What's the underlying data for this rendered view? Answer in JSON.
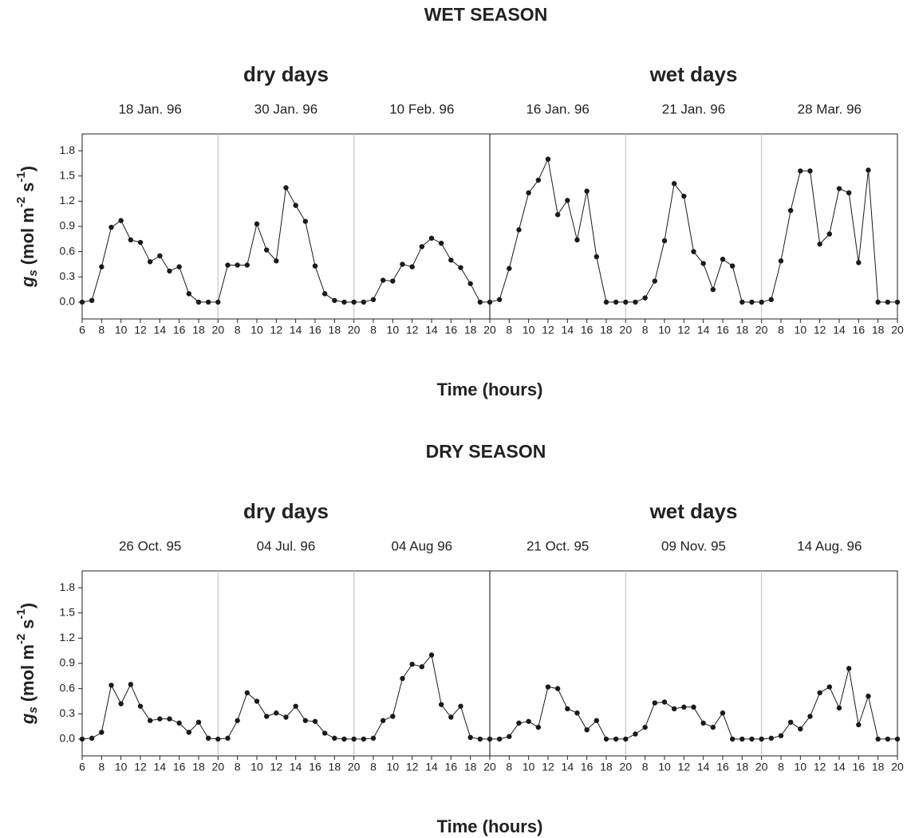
{
  "chart_data": [
    {
      "type": "line",
      "title": "WET SEASON",
      "groups": [
        "dry days",
        "wet days"
      ],
      "xlabel": "Time (hours)",
      "ylabel": {
        "symbol": "g",
        "sub": "s",
        "unit": "(mol m",
        "exp1": "-2",
        "unit2": "s",
        "exp2": "-1",
        "close": ")"
      },
      "xlim": [
        6,
        20
      ],
      "xticks": [
        6,
        8,
        10,
        12,
        14,
        16,
        18,
        20
      ],
      "ylim": [
        -0.2,
        2.0
      ],
      "yticks": [
        {
          "value": 0,
          "label": "0.0"
        },
        0.3,
        0.6,
        0.9,
        1.2,
        1.5,
        1.8
      ],
      "series": [
        {
          "name": "18 Jan. 96",
          "color": "#1a1a1a",
          "x": [
            6,
            7,
            8,
            9,
            10,
            11,
            12,
            13,
            14,
            15,
            16,
            17,
            18,
            19,
            20
          ],
          "values": [
            0.0,
            0.02,
            0.42,
            0.89,
            0.97,
            0.74,
            0.71,
            0.48,
            0.55,
            0.37,
            0.42,
            0.1,
            0.0,
            0.0,
            0.0
          ]
        },
        {
          "name": "30 Jan. 96",
          "color": "#1a1a1a",
          "x": [
            7,
            8,
            9,
            10,
            11,
            12,
            13,
            14,
            15,
            16,
            17,
            18,
            19,
            20
          ],
          "values": [
            0.44,
            0.44,
            0.44,
            0.93,
            0.62,
            0.49,
            1.36,
            1.15,
            0.96,
            0.43,
            0.1,
            0.02,
            0.0,
            0.0
          ]
        },
        {
          "name": "10 Feb. 96",
          "color": "#1a1a1a",
          "x": [
            7,
            8,
            9,
            10,
            11,
            12,
            13,
            14,
            15,
            16,
            17,
            18,
            19,
            20
          ],
          "values": [
            0.0,
            0.03,
            0.26,
            0.25,
            0.45,
            0.42,
            0.66,
            0.76,
            0.7,
            0.5,
            0.41,
            0.22,
            0.0,
            0.0
          ]
        },
        {
          "name": "16 Jan. 96",
          "color": "#1a1a1a",
          "x": [
            7,
            8,
            9,
            10,
            11,
            12,
            13,
            14,
            15,
            16,
            17,
            18,
            19,
            20
          ],
          "values": [
            0.03,
            0.4,
            0.86,
            1.3,
            1.45,
            1.7,
            1.04,
            1.21,
            0.74,
            1.32,
            0.54,
            0.0,
            0.0,
            0.0
          ]
        },
        {
          "name": "21 Jan. 96",
          "color": "#1a1a1a",
          "x": [
            7,
            8,
            9,
            10,
            11,
            12,
            13,
            14,
            15,
            16,
            17,
            18,
            19,
            20
          ],
          "values": [
            0.0,
            0.05,
            0.25,
            0.73,
            1.41,
            1.26,
            0.6,
            0.46,
            0.15,
            0.51,
            0.43,
            0.0,
            0.0,
            0.0
          ]
        },
        {
          "name": "28 Mar. 96",
          "color": "#1a1a1a",
          "x": [
            7,
            8,
            9,
            10,
            11,
            12,
            13,
            14,
            15,
            16,
            17,
            18,
            19,
            20
          ],
          "values": [
            0.03,
            0.49,
            1.09,
            1.56,
            1.56,
            0.69,
            0.81,
            1.35,
            1.3,
            0.47,
            1.57,
            0.0,
            0.0,
            0.0
          ]
        }
      ]
    },
    {
      "type": "line",
      "title": "DRY SEASON",
      "groups": [
        "dry days",
        "wet days"
      ],
      "xlabel": "Time (hours)",
      "ylabel": {
        "symbol": "g",
        "sub": "s",
        "unit": "(mol m",
        "exp1": "-2",
        "unit2": "s",
        "exp2": "-1",
        "close": ")"
      },
      "xlim": [
        6,
        20
      ],
      "xticks": [
        6,
        8,
        10,
        12,
        14,
        16,
        18,
        20
      ],
      "ylim": [
        -0.2,
        2.0
      ],
      "yticks": [
        {
          "value": 0,
          "label": "0.0"
        },
        0.3,
        0.6,
        0.9,
        1.2,
        1.5,
        1.8
      ],
      "series": [
        {
          "name": "26 Oct. 95",
          "color": "#1a1a1a",
          "x": [
            6,
            7,
            8,
            9,
            10,
            11,
            12,
            13,
            14,
            15,
            16,
            17,
            18,
            19,
            20
          ],
          "values": [
            0.0,
            0.01,
            0.08,
            0.64,
            0.42,
            0.65,
            0.39,
            0.22,
            0.24,
            0.24,
            0.19,
            0.08,
            0.2,
            0.01,
            0.0
          ]
        },
        {
          "name": "04 Jul. 96",
          "color": "#1a1a1a",
          "x": [
            7,
            8,
            9,
            10,
            11,
            12,
            13,
            14,
            15,
            16,
            17,
            18,
            19,
            20
          ],
          "values": [
            0.01,
            0.22,
            0.55,
            0.45,
            0.27,
            0.31,
            0.26,
            0.39,
            0.22,
            0.21,
            0.07,
            0.01,
            0.0,
            0.0
          ]
        },
        {
          "name": "04 Aug 96",
          "color": "#1a1a1a",
          "x": [
            7,
            8,
            9,
            10,
            11,
            12,
            13,
            14,
            15,
            16,
            17,
            18,
            19,
            20
          ],
          "values": [
            0.0,
            0.01,
            0.22,
            0.27,
            0.72,
            0.89,
            0.86,
            1.0,
            0.41,
            0.26,
            0.39,
            0.02,
            0.0,
            0.0
          ]
        },
        {
          "name": "21 Oct. 95",
          "color": "#1a1a1a",
          "x": [
            7,
            8,
            9,
            10,
            11,
            12,
            13,
            14,
            15,
            16,
            17,
            18,
            19,
            20
          ],
          "values": [
            0.0,
            0.03,
            0.19,
            0.21,
            0.14,
            0.62,
            0.6,
            0.36,
            0.31,
            0.11,
            0.22,
            0.0,
            0.0,
            0.0
          ]
        },
        {
          "name": "09 Nov. 95",
          "color": "#1a1a1a",
          "x": [
            7,
            8,
            9,
            10,
            11,
            12,
            13,
            14,
            15,
            16,
            17,
            18,
            19,
            20
          ],
          "values": [
            0.06,
            0.14,
            0.43,
            0.44,
            0.36,
            0.38,
            0.38,
            0.19,
            0.14,
            0.31,
            0.0,
            0.0,
            0.0,
            0.0
          ]
        },
        {
          "name": "14 Aug. 96",
          "color": "#1a1a1a",
          "x": [
            7,
            8,
            9,
            10,
            11,
            12,
            13,
            14,
            15,
            16,
            17,
            18,
            19,
            20
          ],
          "values": [
            0.01,
            0.04,
            0.2,
            0.12,
            0.27,
            0.55,
            0.62,
            0.37,
            0.84,
            0.17,
            0.51,
            0.0,
            0.0,
            0.0
          ]
        }
      ]
    }
  ]
}
